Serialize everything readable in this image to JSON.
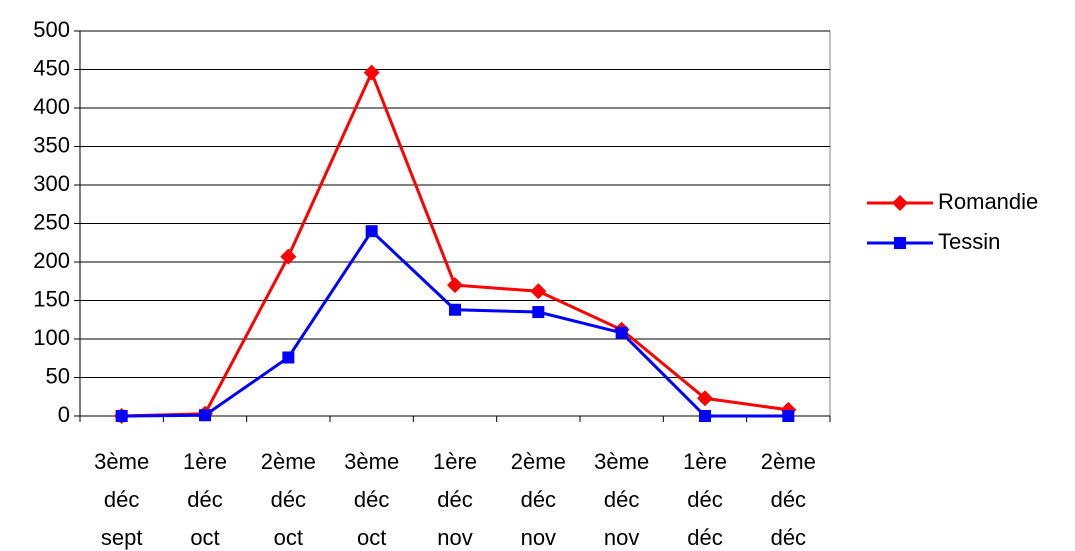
{
  "chart_data": {
    "type": "line",
    "categories": [
      [
        "3ème",
        "déc",
        "sept"
      ],
      [
        "1ère",
        "déc",
        "oct"
      ],
      [
        "2ème",
        "déc",
        "oct"
      ],
      [
        "3ème",
        "déc",
        "oct"
      ],
      [
        "1ère",
        "déc",
        "nov"
      ],
      [
        "2ème",
        "déc",
        "nov"
      ],
      [
        "3ème",
        "déc",
        "nov"
      ],
      [
        "1ère",
        "déc",
        "déc"
      ],
      [
        "2ème",
        "déc",
        "déc"
      ]
    ],
    "series": [
      {
        "name": "Romandie",
        "color": "#ff0000",
        "marker": "diamond",
        "values": [
          0,
          3,
          207,
          446,
          170,
          162,
          112,
          23,
          8
        ]
      },
      {
        "name": "Tessin",
        "color": "#0000ff",
        "marker": "square",
        "values": [
          0,
          1,
          76,
          240,
          138,
          135,
          108,
          0,
          0
        ]
      }
    ],
    "ylim": [
      0,
      500
    ],
    "yticks": [
      0,
      50,
      100,
      150,
      200,
      250,
      300,
      350,
      400,
      450,
      500
    ],
    "grid": true,
    "legend": "right"
  }
}
